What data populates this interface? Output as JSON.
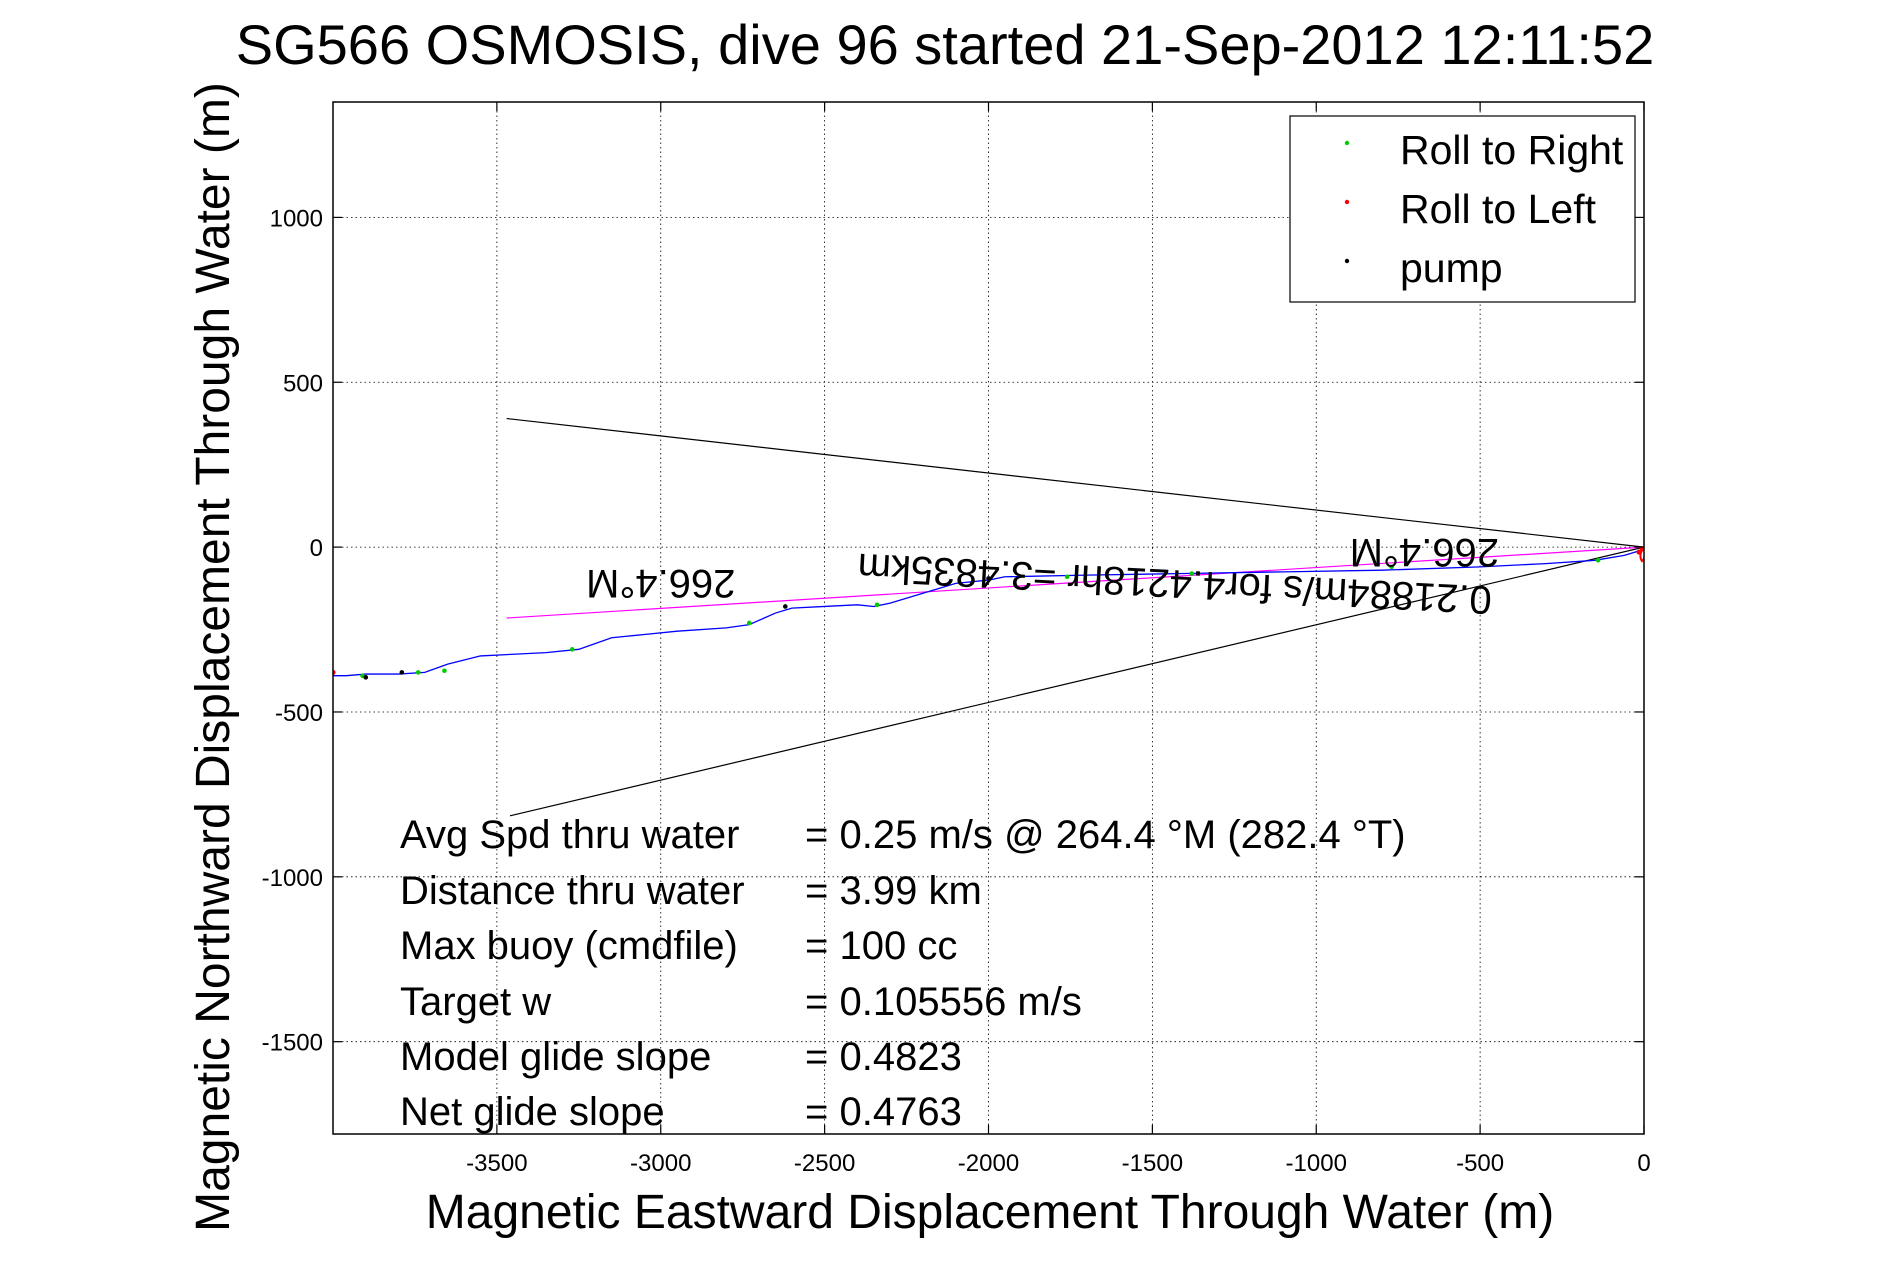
{
  "chart_data": {
    "type": "line",
    "title": "SG566 OSMOSIS, dive 96 started 21-Sep-2012 12:11:52",
    "xlabel": "Magnetic Eastward Displacement Through Water (m)",
    "ylabel": "Magnetic Northward Displacement Through Water (m)",
    "xlim": [
      -4000,
      0
    ],
    "ylim": [
      -1780,
      1350
    ],
    "grid": true,
    "x_ticks": [
      -3500,
      -3000,
      -2500,
      -2000,
      -1500,
      -1000,
      -500,
      0
    ],
    "x_tick_labels": [
      "-3500",
      "-3000",
      "-2500",
      "-2000",
      "-1500",
      "-1000",
      "-500",
      "0"
    ],
    "y_ticks": [
      1000,
      500,
      0,
      -500,
      -1000,
      -1500
    ],
    "y_tick_labels": [
      "1000",
      "500",
      "0",
      "-500",
      "-1000",
      "-1500"
    ],
    "legend": {
      "position": "top-right",
      "entries": [
        {
          "label": "Roll to Right",
          "color": "#00cc00"
        },
        {
          "label": "Roll to Left",
          "color": "#ff0000"
        },
        {
          "label": "pump",
          "color": "#000000"
        }
      ]
    },
    "track": {
      "color": "#0000ff",
      "x": [
        0,
        -10,
        -60,
        -150,
        -300,
        -500,
        -800,
        -1100,
        -1400,
        -1700,
        -1950,
        -2000,
        -2100,
        -2200,
        -2300,
        -2350,
        -2400,
        -2500,
        -2600,
        -2650,
        -2730,
        -2800,
        -2950,
        -3050,
        -3150,
        -3250,
        -3350,
        -3450,
        -3550,
        -3650,
        -3720,
        -3800,
        -3900,
        -3960,
        -4000
      ],
      "y": [
        0,
        -10,
        -25,
        -40,
        -50,
        -60,
        -70,
        -75,
        -80,
        -85,
        -90,
        -100,
        -110,
        -140,
        -170,
        -180,
        -175,
        -180,
        -185,
        -200,
        -235,
        -245,
        -255,
        -265,
        -275,
        -310,
        -320,
        -325,
        -330,
        -355,
        -380,
        -385,
        -385,
        -390,
        -390
      ]
    },
    "roll_right_points": {
      "x": [
        -140,
        -770,
        -1380,
        -1760,
        -2340,
        -2730,
        -3270,
        -3660,
        -3740,
        -3910
      ],
      "y": [
        -40,
        -60,
        -80,
        -90,
        -175,
        -230,
        -310,
        -375,
        -380,
        -390
      ]
    },
    "roll_left_points": {
      "x": [
        -5,
        -15,
        -4000
      ],
      "y": [
        -5,
        -15,
        -380
      ]
    },
    "pump_points": {
      "x": [
        -2000,
        -2620,
        -3790,
        -3900
      ],
      "y": [
        -95,
        -180,
        -380,
        -395
      ]
    },
    "reference_lines": [
      {
        "color": "#000000",
        "x": [
          0,
          -3470
        ],
        "y": [
          0,
          390
        ]
      },
      {
        "color": "#000000",
        "x": [
          0,
          -3460
        ],
        "y": [
          0,
          -815
        ]
      },
      {
        "color": "#ff00ff",
        "x": [
          0,
          -3470
        ],
        "y": [
          0,
          -215
        ]
      }
    ],
    "annotations": [
      {
        "text": "266.4°M",
        "x": -3000,
        "y": -70,
        "rotation": 180
      },
      {
        "text": "266.4°M",
        "x": -670,
        "y": 25,
        "rotation": 180
      },
      {
        "text": "0.21884m/s for4.4218hr =3.4835km",
        "x": -1430,
        "y": -70,
        "rotation": 183
      }
    ],
    "stats": [
      {
        "label": "Avg Spd thru water",
        "value": "=  0.25 m/s @ 264.4 °M (282.4 °T)"
      },
      {
        "label": "Distance thru water",
        "value": "=  3.99 km"
      },
      {
        "label": "Max buoy (cmdfile)",
        "value": "= 100 cc"
      },
      {
        "label": "Target w",
        "value": "= 0.105556 m/s"
      },
      {
        "label": "Model glide slope",
        "value": "= 0.4823"
      },
      {
        "label": "Net glide slope",
        "value": "= 0.4763"
      }
    ]
  }
}
